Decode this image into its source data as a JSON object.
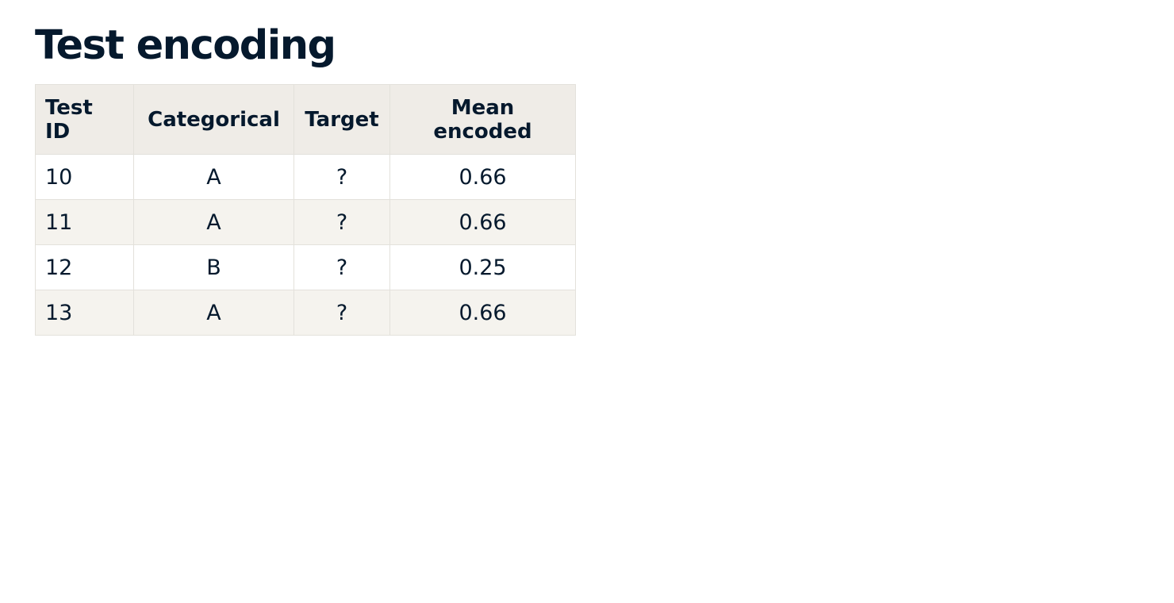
{
  "title": "Test encoding",
  "table": {
    "headers": {
      "id": "Test\nID",
      "categorical": "Categorical",
      "target": "Target",
      "mean": "Mean\nencoded"
    },
    "rows": [
      {
        "id": "10",
        "categorical": "A",
        "target": "?",
        "mean": "0.66"
      },
      {
        "id": "11",
        "categorical": "A",
        "target": "?",
        "mean": "0.66"
      },
      {
        "id": "12",
        "categorical": "B",
        "target": "?",
        "mean": "0.25"
      },
      {
        "id": "13",
        "categorical": "A",
        "target": "?",
        "mean": "0.66"
      }
    ]
  },
  "colors": {
    "text": "#05192d",
    "header_bg": "#efece7",
    "alt_row_bg": "#f5f3ee",
    "border": "#e3e1db"
  }
}
